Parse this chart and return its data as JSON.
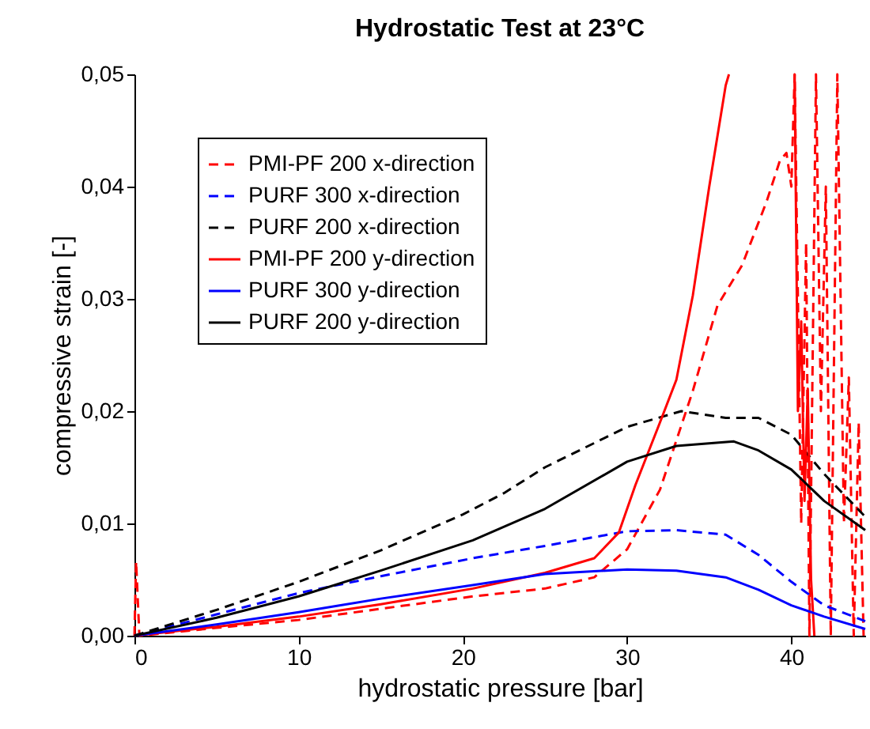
{
  "chart_data": {
    "type": "line",
    "title": "Hydrostatic Test at 23°C",
    "xlabel": "hydrostatic pressure [bar]",
    "ylabel": "compressive strain [-]",
    "xlim": [
      0,
      44.5
    ],
    "xticks": [
      0,
      10,
      20,
      30,
      40
    ],
    "ylim": [
      0,
      0.05
    ],
    "yticks": [
      {
        "value": 0,
        "label": "0,00"
      },
      {
        "value": 0.01,
        "label": "0,01"
      },
      {
        "value": 0.02,
        "label": "0,02"
      },
      {
        "value": 0.03,
        "label": "0,03"
      },
      {
        "value": 0.04,
        "label": "0,04"
      },
      {
        "value": 0.05,
        "label": "0,05"
      }
    ],
    "grid": false,
    "legend": "top left",
    "marker": "none",
    "series": [
      {
        "name": "PMI-PF 200 x-direction",
        "color": "#ff0000",
        "line_style": "dashed",
        "x": [
          0,
          0.1,
          0.3,
          5,
          10,
          15,
          20.6,
          25,
          28,
          30,
          32,
          34,
          35.5,
          37,
          38.5,
          39.3,
          39.7,
          40,
          40.2,
          40.6,
          40.9,
          41.1,
          41.5,
          41.8,
          42.1,
          42.4,
          42.8,
          43.2,
          43.5,
          43.8,
          44.1,
          44.4
        ],
        "values": [
          0,
          0.0066,
          0,
          0.0007,
          0.0014,
          0.0024,
          0.0035,
          0.0042,
          0.0052,
          0.0077,
          0.013,
          0.0218,
          0.0294,
          0.033,
          0.0387,
          0.0423,
          0.043,
          0.04,
          0.05,
          0.01,
          0.035,
          0,
          0.05,
          0.02,
          0.04,
          0,
          0.05,
          0.01,
          0.023,
          0,
          0.019,
          0
        ]
      },
      {
        "name": "PURF 300 x-direction",
        "color": "#0000ff",
        "line_style": "dashed",
        "x": [
          0,
          5,
          10,
          15,
          20.6,
          25,
          30,
          33,
          36,
          38,
          40,
          42,
          44.5
        ],
        "values": [
          0,
          0.0019,
          0.0038,
          0.0053,
          0.0069,
          0.008,
          0.0093,
          0.0094,
          0.009,
          0.0072,
          0.0048,
          0.0027,
          0.0013
        ]
      },
      {
        "name": "PURF 200 x-direction",
        "color": "#000000",
        "line_style": "dashed",
        "x": [
          0,
          5,
          10,
          15,
          20,
          22.5,
          25,
          30,
          33.3,
          36,
          38,
          40,
          42,
          44.5
        ],
        "values": [
          0,
          0.0023,
          0.0048,
          0.0076,
          0.0108,
          0.0127,
          0.015,
          0.0186,
          0.02,
          0.0194,
          0.0194,
          0.0179,
          0.0144,
          0.0106
        ]
      },
      {
        "name": "PMI-PF 200 y-direction",
        "color": "#ff0000",
        "line_style": "solid",
        "x": [
          0,
          5,
          10,
          15,
          20.6,
          25,
          28,
          29.5,
          30.5,
          32,
          33,
          34,
          35,
          36,
          36.2,
          38,
          40.2,
          40.4,
          40.6,
          40.8,
          41,
          41.2,
          41.4
        ],
        "values": [
          0,
          0.0008,
          0.0017,
          0.0028,
          0.0042,
          0.0056,
          0.0069,
          0.0092,
          0.0134,
          0.019,
          0.0228,
          0.0303,
          0.04,
          0.049,
          0.05,
          null,
          0.05,
          0.02,
          0.028,
          0.012,
          0.022,
          0.005,
          0
        ]
      },
      {
        "name": "PURF 300 y-direction",
        "color": "#0000ff",
        "line_style": "solid",
        "x": [
          0,
          5,
          10,
          15,
          20.6,
          25,
          30,
          33,
          36,
          38,
          40,
          42,
          44.5
        ],
        "values": [
          0,
          0.001,
          0.0021,
          0.0033,
          0.0045,
          0.0055,
          0.0059,
          0.0058,
          0.0052,
          0.0041,
          0.0027,
          0.0017,
          0.0006
        ]
      },
      {
        "name": "PURF 200 y-direction",
        "color": "#000000",
        "line_style": "solid",
        "x": [
          0,
          5,
          10,
          15,
          20.6,
          25,
          30,
          33,
          36.5,
          38,
          40,
          42,
          44.5
        ],
        "values": [
          0,
          0.0016,
          0.0035,
          0.0058,
          0.0085,
          0.0113,
          0.0155,
          0.0169,
          0.0173,
          0.0165,
          0.0148,
          0.012,
          0.0094
        ]
      }
    ]
  }
}
